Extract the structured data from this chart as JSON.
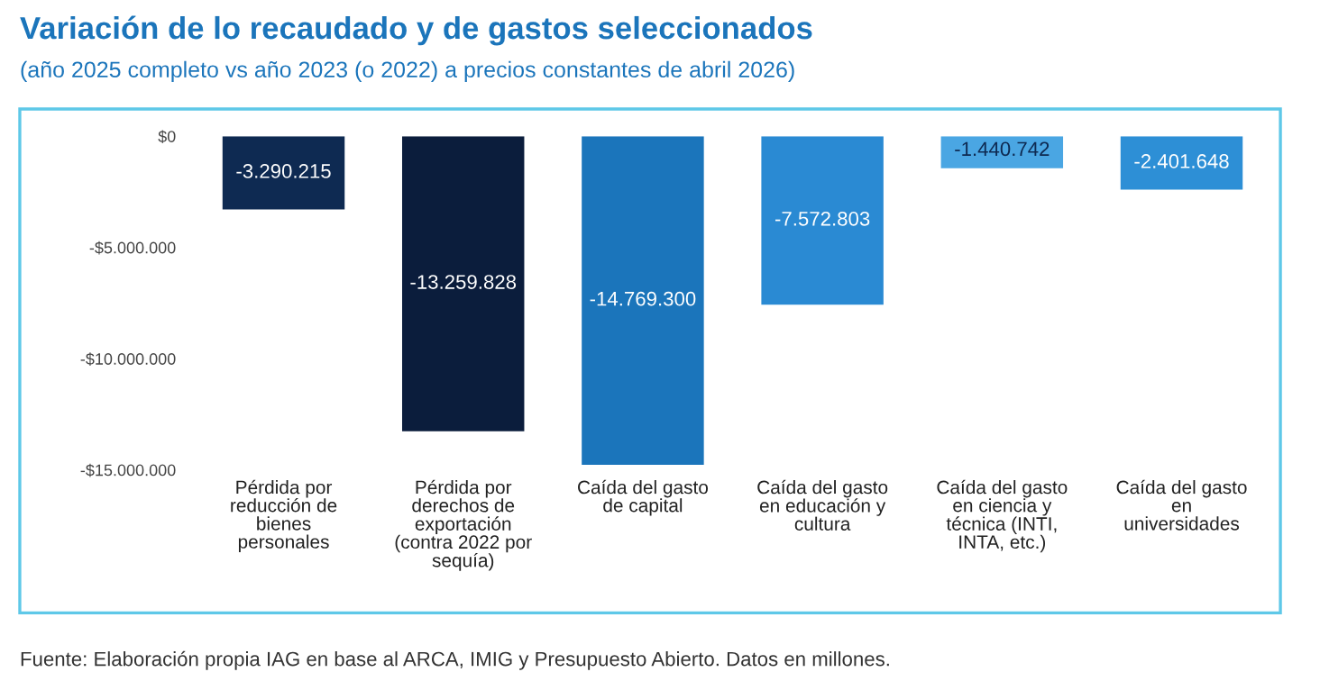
{
  "chart_data": {
    "type": "bar",
    "title": "Variación de lo recaudado y de gastos seleccionados",
    "subtitle": "(año 2025 completo vs año 2023 (o 2022) a precios constantes de abril 2026)",
    "categories": [
      "Pérdida por\nreducción de\nbienes\npersonales",
      "Pérdida por\nderechos de\nexportación\n(contra 2022 por\nsequía)",
      "Caída del gasto\nde capital",
      "Caída del gasto\nen educación y\ncultura",
      "Caída del gasto\nen ciencia y\ntécnica (INTI,\nINTA, etc.)",
      "Caída del gasto\nen\nuniversidades"
    ],
    "values": [
      -3290215,
      -13259828,
      -14769300,
      -7572803,
      -1440742,
      -2401648
    ],
    "colors": [
      "#0e2a52",
      "#0b1d3c",
      "#1b75bb",
      "#2a8ad3",
      "#4aa6e3",
      "#2d8fd6"
    ],
    "value_labels": [
      "-3.290.215",
      "-13.259.828",
      "-14.769.300",
      "-7.572.803",
      "-1.440.742",
      "-2.401.648"
    ],
    "ylim": [
      -15000000,
      0
    ],
    "yticks": [
      {
        "value": 0,
        "label": "$0"
      },
      {
        "value": -5000000,
        "label": "-$5.000.000"
      },
      {
        "value": -10000000,
        "label": "-$10.000.000"
      },
      {
        "value": -15000000,
        "label": "-$15.000.000"
      }
    ],
    "grid": false,
    "legend": false,
    "annotations": [
      "Fuente: Elaboración propia IAG en base al ARCA, IMIG y Presupuesto Abierto. Datos en millones."
    ]
  }
}
